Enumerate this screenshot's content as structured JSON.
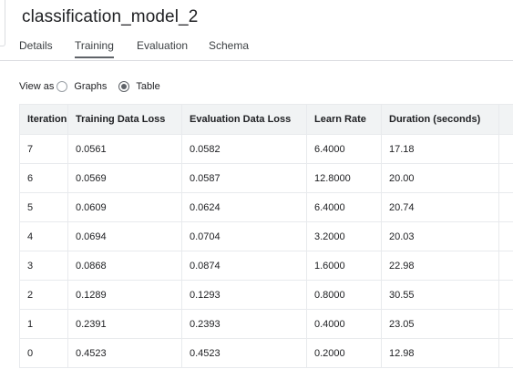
{
  "header": {
    "title": "classification_model_2"
  },
  "tabs": [
    {
      "label": "Details"
    },
    {
      "label": "Training"
    },
    {
      "label": "Evaluation"
    },
    {
      "label": "Schema"
    }
  ],
  "active_tab": "Training",
  "view_as": {
    "label": "View as",
    "options": [
      {
        "label": "Graphs",
        "selected": false
      },
      {
        "label": "Table",
        "selected": true
      }
    ]
  },
  "table": {
    "columns": [
      "Iteration",
      "Training Data Loss",
      "Evaluation Data Loss",
      "Learn Rate",
      "Duration (seconds)",
      ""
    ],
    "rows": [
      [
        "7",
        "0.0561",
        "0.0582",
        "6.4000",
        "17.18",
        ""
      ],
      [
        "6",
        "0.0569",
        "0.0587",
        "12.8000",
        "20.00",
        ""
      ],
      [
        "5",
        "0.0609",
        "0.0624",
        "6.4000",
        "20.74",
        ""
      ],
      [
        "4",
        "0.0694",
        "0.0704",
        "3.2000",
        "20.03",
        ""
      ],
      [
        "3",
        "0.0868",
        "0.0874",
        "1.6000",
        "22.98",
        ""
      ],
      [
        "2",
        "0.1289",
        "0.1293",
        "0.8000",
        "30.55",
        ""
      ],
      [
        "1",
        "0.2391",
        "0.2393",
        "0.4000",
        "23.05",
        ""
      ],
      [
        "0",
        "0.4523",
        "0.4523",
        "0.2000",
        "12.98",
        ""
      ]
    ]
  },
  "colors": {
    "header_bg": "#f1f3f4",
    "border": "#e8eaed",
    "tab_underline": "#5f6368"
  }
}
